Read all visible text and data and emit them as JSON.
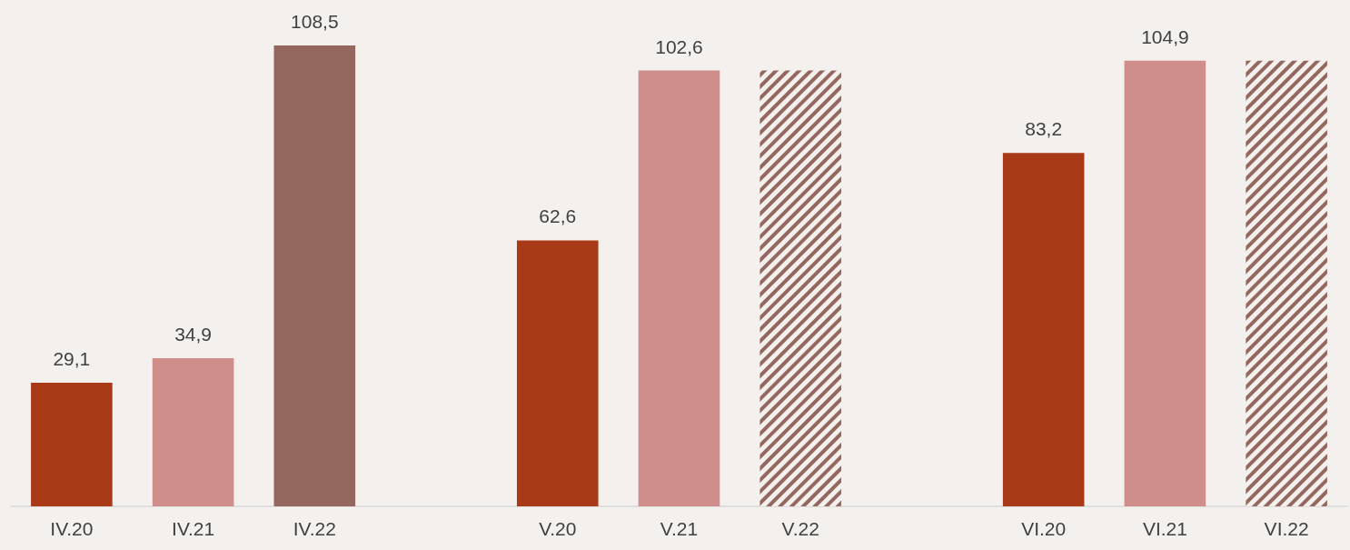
{
  "chart_data": {
    "type": "bar",
    "categories": [
      "IV.20",
      "IV.21",
      "IV.22",
      null,
      "V.20",
      "V.21",
      "V.22",
      null,
      "VI.20",
      "VI.21",
      "VI.22"
    ],
    "series": [
      {
        "colors": [
          "#a93a17",
          "#d08e8b",
          "#94675f",
          null,
          "#a93a17",
          "#d08e8b",
          null,
          null,
          "#a93a17",
          "#d08e8b",
          null
        ],
        "values": [
          29.1,
          34.9,
          108.5,
          null,
          62.6,
          102.6,
          null,
          null,
          83.2,
          104.9,
          null
        ],
        "value_labels": [
          "29,1",
          "34,9",
          "108,5",
          null,
          "62,6",
          "102,6",
          null,
          null,
          "83,2",
          "104,9",
          null
        ]
      },
      {
        "color": "#94675f",
        "values": [
          null,
          null,
          null,
          null,
          null,
          null,
          102.6,
          null,
          null,
          null,
          104.9
        ]
      }
    ],
    "data_labels": false
  }
}
